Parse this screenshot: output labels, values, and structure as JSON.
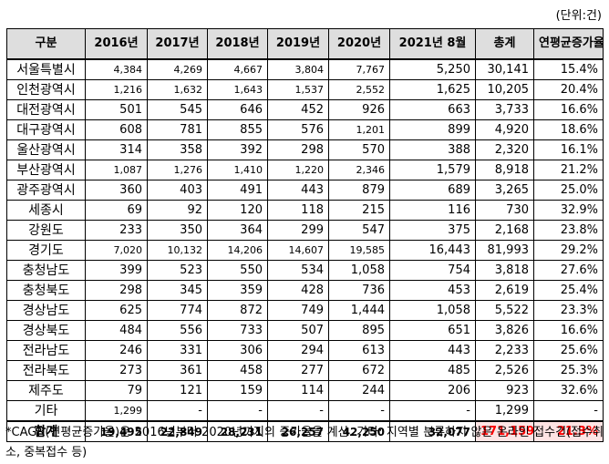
{
  "unit": "(단위:건)",
  "headers": [
    "구분",
    "2016년",
    "2017년",
    "2018년",
    "2019년",
    "2020년",
    "2021년 8월",
    "총계",
    "연평균증가율"
  ],
  "rows": [
    {
      "region": "서울특별시",
      "v2016": "4,384",
      "v2017": "4,269",
      "v2018": "4,667",
      "v2019": "3,804",
      "v2020": "7,767",
      "v2021": "5,250",
      "total": "30,141",
      "cagr": "15.4%"
    },
    {
      "region": "인천광역시",
      "v2016": "1,216",
      "v2017": "1,632",
      "v2018": "1,643",
      "v2019": "1,537",
      "v2020": "2,552",
      "v2021": "1,625",
      "total": "10,205",
      "cagr": "20.4%"
    },
    {
      "region": "대전광역시",
      "v2016": "501",
      "v2017": "545",
      "v2018": "646",
      "v2019": "452",
      "v2020": "926",
      "v2021": "663",
      "total": "3,733",
      "cagr": "16.6%"
    },
    {
      "region": "대구광역시",
      "v2016": "608",
      "v2017": "781",
      "v2018": "855",
      "v2019": "576",
      "v2020": "1,201",
      "v2021": "899",
      "total": "4,920",
      "cagr": "18.6%"
    },
    {
      "region": "울산광역시",
      "v2016": "314",
      "v2017": "358",
      "v2018": "392",
      "v2019": "298",
      "v2020": "570",
      "v2021": "388",
      "total": "2,320",
      "cagr": "16.1%"
    },
    {
      "region": "부산광역시",
      "v2016": "1,087",
      "v2017": "1,276",
      "v2018": "1,410",
      "v2019": "1,220",
      "v2020": "2,346",
      "v2021": "1,579",
      "total": "8,918",
      "cagr": "21.2%"
    },
    {
      "region": "광주광역시",
      "v2016": "360",
      "v2017": "403",
      "v2018": "491",
      "v2019": "443",
      "v2020": "879",
      "v2021": "689",
      "total": "3,265",
      "cagr": "25.0%"
    },
    {
      "region": "세종시",
      "v2016": "69",
      "v2017": "92",
      "v2018": "120",
      "v2019": "118",
      "v2020": "215",
      "v2021": "116",
      "total": "730",
      "cagr": "32.9%"
    },
    {
      "region": "강원도",
      "v2016": "233",
      "v2017": "350",
      "v2018": "364",
      "v2019": "299",
      "v2020": "547",
      "v2021": "375",
      "total": "2,168",
      "cagr": "23.8%"
    },
    {
      "region": "경기도",
      "v2016": "7,020",
      "v2017": "10,132",
      "v2018": "14,206",
      "v2019": "14,607",
      "v2020": "19,585",
      "v2021": "16,443",
      "total": "81,993",
      "cagr": "29.2%"
    },
    {
      "region": "충청남도",
      "v2016": "399",
      "v2017": "523",
      "v2018": "550",
      "v2019": "534",
      "v2020": "1,058",
      "v2021": "754",
      "total": "3,818",
      "cagr": "27.6%"
    },
    {
      "region": "충청북도",
      "v2016": "298",
      "v2017": "345",
      "v2018": "359",
      "v2019": "428",
      "v2020": "736",
      "v2021": "453",
      "total": "2,619",
      "cagr": "25.4%"
    },
    {
      "region": "경상남도",
      "v2016": "625",
      "v2017": "774",
      "v2018": "872",
      "v2019": "749",
      "v2020": "1,444",
      "v2021": "1,058",
      "total": "5,522",
      "cagr": "23.3%"
    },
    {
      "region": "경상북도",
      "v2016": "484",
      "v2017": "556",
      "v2018": "733",
      "v2019": "507",
      "v2020": "895",
      "v2021": "651",
      "total": "3,826",
      "cagr": "16.6%"
    },
    {
      "region": "전라남도",
      "v2016": "246",
      "v2017": "331",
      "v2018": "306",
      "v2019": "294",
      "v2020": "613",
      "v2021": "443",
      "total": "2,233",
      "cagr": "25.6%"
    },
    {
      "region": "전라북도",
      "v2016": "273",
      "v2017": "361",
      "v2018": "458",
      "v2019": "277",
      "v2020": "672",
      "v2021": "485",
      "total": "2,526",
      "cagr": "25.3%"
    },
    {
      "region": "제주도",
      "v2016": "79",
      "v2017": "121",
      "v2018": "159",
      "v2019": "114",
      "v2020": "244",
      "v2021": "206",
      "total": "923",
      "cagr": "32.6%"
    },
    {
      "region": "기타",
      "v2016": "1,299",
      "v2017": "-",
      "v2018": "-",
      "v2019": "-",
      "v2020": "-",
      "v2021": "-",
      "total": "1,299",
      "cagr": "-"
    }
  ],
  "total_row": {
    "region": "합계",
    "v2016": "19,495",
    "v2017": "22,849",
    "v2018": "28,231",
    "v2019": "26,257",
    "v2020": "42,250",
    "v2021": "32,077",
    "total": "171,159",
    "cagr": "21.3%"
  },
  "note": "*CAGR(연평균증가율)은 2016년부터 2020년까지의 증가율을 계산. 기타: 지역별 분류하지 않은 온라인 접수건(접수취소, 중복접수 등)",
  "colors": {
    "header_bg": "#dedede",
    "highlight_text": "#ff0000",
    "highlight_bg": "#fde4e4"
  }
}
